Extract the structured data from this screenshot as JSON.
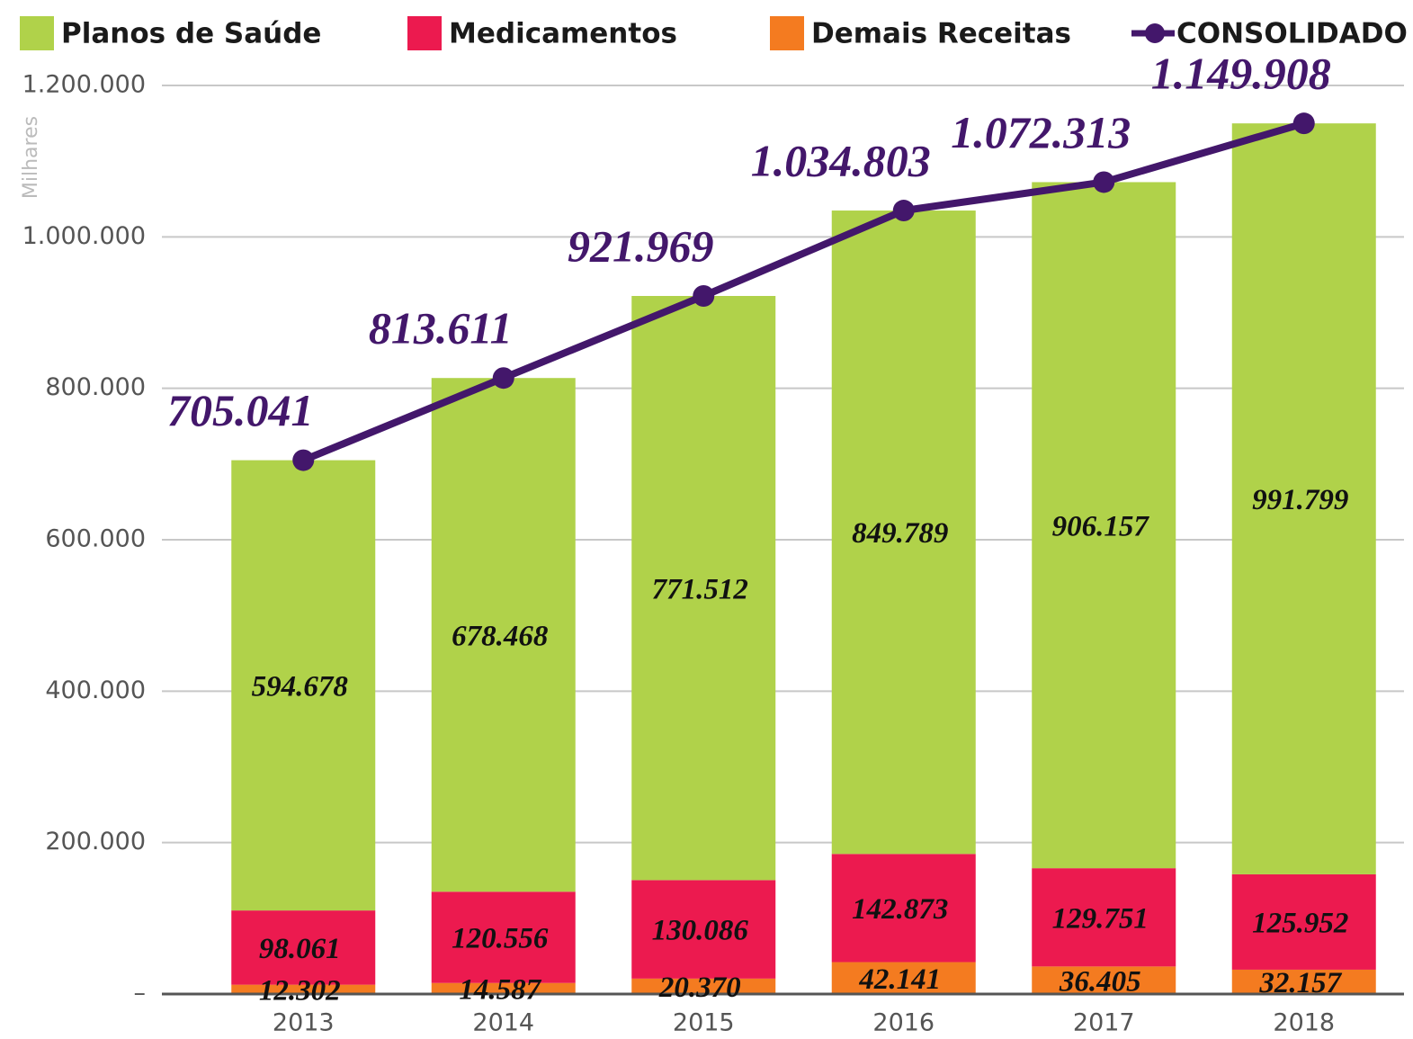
{
  "chart_data": {
    "type": "stacked_bar_line",
    "y_label": "Milhares",
    "categories": [
      "2013",
      "2014",
      "2015",
      "2016",
      "2017",
      "2018"
    ],
    "ylim": [
      0,
      1200000
    ],
    "yticks": [
      {
        "value": 0,
        "label": "–"
      },
      {
        "value": 200000,
        "label": "200.000"
      },
      {
        "value": 400000,
        "label": "400.000"
      },
      {
        "value": 600000,
        "label": "600.000"
      },
      {
        "value": 800000,
        "label": "800.000"
      },
      {
        "value": 1000000,
        "label": "1.000.000"
      },
      {
        "value": 1200000,
        "label": "1.200.000"
      }
    ],
    "grid": true,
    "series": [
      {
        "name": "Planos de Saúde",
        "type": "bar",
        "color": "#b0d24a",
        "values": [
          594678,
          678468,
          771512,
          849789,
          906157,
          991799
        ],
        "value_labels": [
          "594.678",
          "678.468",
          "771.512",
          "849.789",
          "906.157",
          "991.799"
        ]
      },
      {
        "name": "Medicamentos",
        "type": "bar",
        "color": "#ec1a4f",
        "values": [
          98061,
          120556,
          130086,
          142873,
          129751,
          125952
        ],
        "value_labels": [
          "98.061",
          "120.556",
          "130.086",
          "142.873",
          "129.751",
          "125.952"
        ]
      },
      {
        "name": "Demais Receitas",
        "type": "bar",
        "color": "#f47b20",
        "values": [
          12302,
          14587,
          20370,
          42141,
          36405,
          32157
        ],
        "value_labels": [
          "12.302",
          "14.587",
          "20.370",
          "42.141",
          "36.405",
          "32.157"
        ]
      },
      {
        "name": "CONSOLIDADO",
        "type": "line",
        "color": "#43176b",
        "values": [
          705041,
          813611,
          921969,
          1034803,
          1072313,
          1149908
        ],
        "value_labels": [
          "705.041",
          "813.611",
          "921.969",
          "1.034.803",
          "1.072.313",
          "1.149.908"
        ]
      }
    ]
  }
}
